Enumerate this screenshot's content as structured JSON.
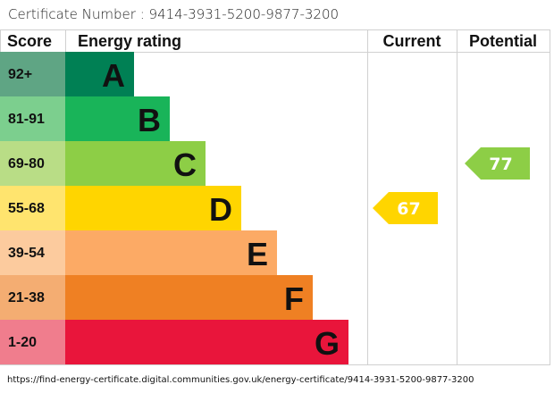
{
  "certificate_label": "Certificate Number : 9414-3931-5200-9877-3200",
  "chart_data": {
    "type": "bar",
    "headers": {
      "score": "Score",
      "rating": "Energy rating",
      "current": "Current",
      "potential": "Potential"
    },
    "bands": [
      {
        "letter": "A",
        "range": "92+",
        "color": "#008054",
        "light": "#5fa584"
      },
      {
        "letter": "B",
        "range": "81-91",
        "color": "#19b459",
        "light": "#7ccf8e"
      },
      {
        "letter": "C",
        "range": "69-80",
        "color": "#8dce46",
        "light": "#b9dd86"
      },
      {
        "letter": "D",
        "range": "55-68",
        "color": "#ffd500",
        "light": "#ffe46e"
      },
      {
        "letter": "E",
        "range": "39-54",
        "color": "#fcaa65",
        "light": "#fccb9e"
      },
      {
        "letter": "F",
        "range": "21-38",
        "color": "#ef8023",
        "light": "#f4ad72"
      },
      {
        "letter": "G",
        "range": "1-20",
        "color": "#e9153b",
        "light": "#f07d8d"
      }
    ],
    "current": {
      "value": 67,
      "band": "D"
    },
    "potential": {
      "value": 77,
      "band": "C"
    }
  },
  "url": "https://find-energy-certificate.digital.communities.gov.uk/energy-certificate/9414-3931-5200-9877-3200"
}
